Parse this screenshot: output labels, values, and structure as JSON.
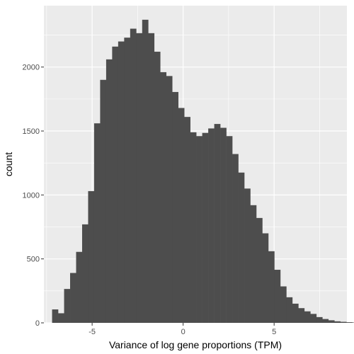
{
  "chart_data": {
    "type": "bar",
    "histogram": true,
    "xlabel": "Variance of log gene proportions (TPM)",
    "ylabel": "count",
    "xlim": [
      -7.65,
      9.0
    ],
    "ylim": [
      0,
      2480
    ],
    "bin_start": -7.2,
    "bin_width": 0.33,
    "counts": [
      105,
      75,
      265,
      390,
      555,
      770,
      1030,
      1560,
      1900,
      2060,
      2160,
      2200,
      2230,
      2300,
      2265,
      2370,
      2265,
      2120,
      1960,
      1930,
      1805,
      1680,
      1610,
      1490,
      1460,
      1485,
      1520,
      1555,
      1525,
      1460,
      1320,
      1175,
      1050,
      920,
      820,
      700,
      560,
      415,
      285,
      200,
      150,
      115,
      90,
      70,
      45,
      30,
      20,
      12,
      8,
      5,
      3,
      2,
      1
    ],
    "x_ticks": [
      {
        "value": -5,
        "label": "-5"
      },
      {
        "value": 0,
        "label": "0"
      },
      {
        "value": 5,
        "label": "5"
      }
    ],
    "y_ticks": [
      {
        "value": 0,
        "label": "0"
      },
      {
        "value": 500,
        "label": "500"
      },
      {
        "value": 1000,
        "label": "1000"
      },
      {
        "value": 1500,
        "label": "1500"
      },
      {
        "value": 2000,
        "label": "2000"
      }
    ],
    "grid": true,
    "colors": {
      "panel": "#ebebeb",
      "grid_major": "#ffffff",
      "bar": "#4d4d4d",
      "tick_text": "#4d4d4d"
    }
  }
}
